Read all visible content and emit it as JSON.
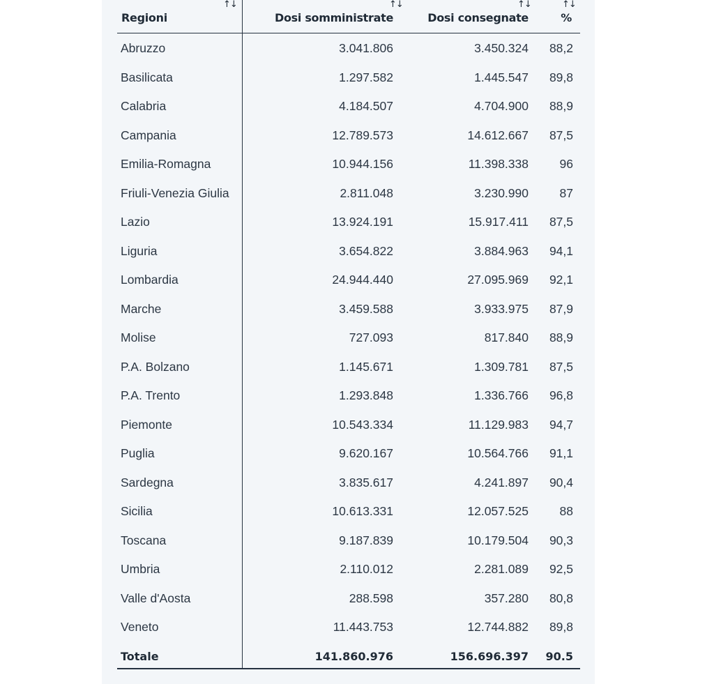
{
  "table": {
    "headers": {
      "region": "Regioni",
      "administered": "Dosi somministrate",
      "delivered": "Dosi consegnate",
      "percent": "%"
    },
    "sort_icon": "↑↓",
    "rows": [
      {
        "region": "Abruzzo",
        "administered": "3.041.806",
        "delivered": "3.450.324",
        "percent": "88,2"
      },
      {
        "region": "Basilicata",
        "administered": "1.297.582",
        "delivered": "1.445.547",
        "percent": "89,8"
      },
      {
        "region": "Calabria",
        "administered": "4.184.507",
        "delivered": "4.704.900",
        "percent": "88,9"
      },
      {
        "region": "Campania",
        "administered": "12.789.573",
        "delivered": "14.612.667",
        "percent": "87,5"
      },
      {
        "region": "Emilia-Romagna",
        "administered": "10.944.156",
        "delivered": "11.398.338",
        "percent": "96"
      },
      {
        "region": "Friuli-Venezia Giulia",
        "administered": "2.811.048",
        "delivered": "3.230.990",
        "percent": "87"
      },
      {
        "region": "Lazio",
        "administered": "13.924.191",
        "delivered": "15.917.411",
        "percent": "87,5"
      },
      {
        "region": "Liguria",
        "administered": "3.654.822",
        "delivered": "3.884.963",
        "percent": "94,1"
      },
      {
        "region": "Lombardia",
        "administered": "24.944.440",
        "delivered": "27.095.969",
        "percent": "92,1"
      },
      {
        "region": "Marche",
        "administered": "3.459.588",
        "delivered": "3.933.975",
        "percent": "87,9"
      },
      {
        "region": "Molise",
        "administered": "727.093",
        "delivered": "817.840",
        "percent": "88,9"
      },
      {
        "region": "P.A. Bolzano",
        "administered": "1.145.671",
        "delivered": "1.309.781",
        "percent": "87,5"
      },
      {
        "region": "P.A. Trento",
        "administered": "1.293.848",
        "delivered": "1.336.766",
        "percent": "96,8"
      },
      {
        "region": "Piemonte",
        "administered": "10.543.334",
        "delivered": "11.129.983",
        "percent": "94,7"
      },
      {
        "region": "Puglia",
        "administered": "9.620.167",
        "delivered": "10.564.766",
        "percent": "91,1"
      },
      {
        "region": "Sardegna",
        "administered": "3.835.617",
        "delivered": "4.241.897",
        "percent": "90,4"
      },
      {
        "region": "Sicilia",
        "administered": "10.613.331",
        "delivered": "12.057.525",
        "percent": "88"
      },
      {
        "region": "Toscana",
        "administered": "9.187.839",
        "delivered": "10.179.504",
        "percent": "90,3"
      },
      {
        "region": "Umbria",
        "administered": "2.110.012",
        "delivered": "2.281.089",
        "percent": "92,5"
      },
      {
        "region": "Valle d'Aosta",
        "administered": "288.598",
        "delivered": "357.280",
        "percent": "80,8"
      },
      {
        "region": "Veneto",
        "administered": "11.443.753",
        "delivered": "12.744.882",
        "percent": "89,8"
      }
    ],
    "total": {
      "region": "Totale",
      "administered": "141.860.976",
      "delivered": "156.696.397",
      "percent": "90.5"
    }
  }
}
